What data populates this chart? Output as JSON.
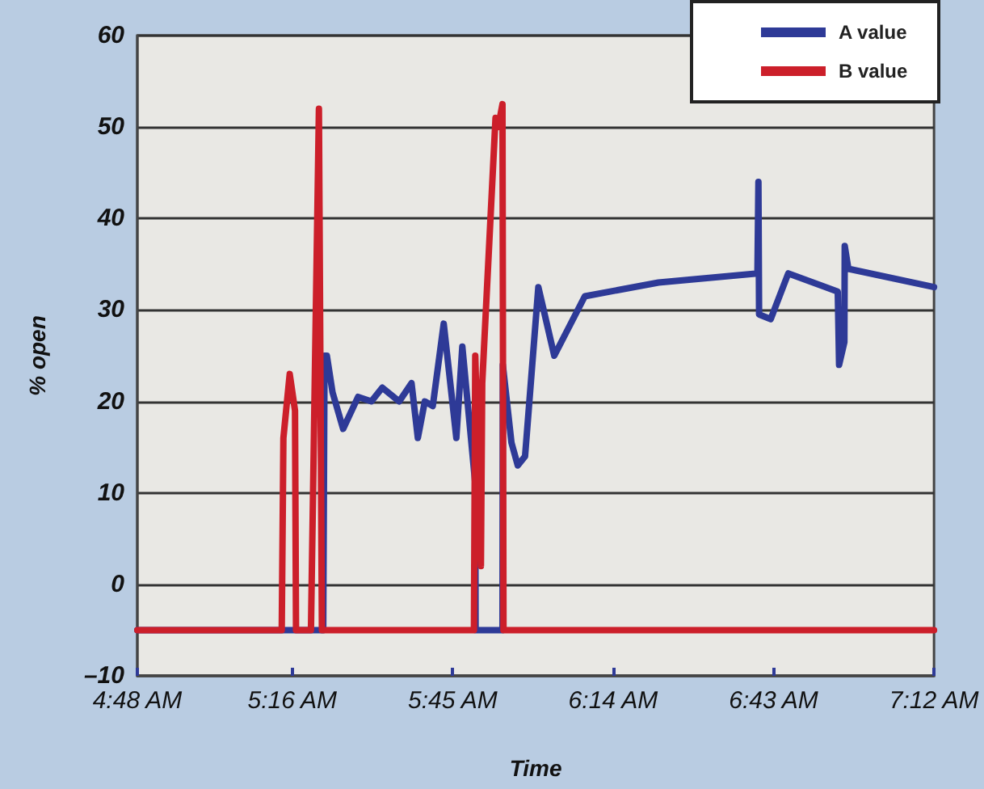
{
  "chart_data": {
    "type": "line",
    "xlabel": "Time",
    "ylabel": "% open",
    "xlim": [
      4.8,
      7.2
    ],
    "xticks": [
      {
        "value": 4.8,
        "label": "4:48 AM"
      },
      {
        "value": 5.2667,
        "label": "5:16 AM"
      },
      {
        "value": 5.75,
        "label": "5:45 AM"
      },
      {
        "value": 6.2333,
        "label": "6:14 AM"
      },
      {
        "value": 6.7167,
        "label": "6:43 AM"
      },
      {
        "value": 7.2,
        "label": "7:12 AM"
      }
    ],
    "ylim": [
      -10,
      60
    ],
    "yticks": [
      {
        "value": -10,
        "label": "–10"
      },
      0,
      10,
      20,
      30,
      40,
      50,
      60
    ],
    "grid": "y",
    "legend": "top right",
    "marker": "none",
    "line_style": "solid",
    "series": [
      {
        "name": "A value",
        "color": "#2e3a97",
        "x": [
          4.8,
          5.36,
          5.364,
          5.371,
          5.388,
          5.42,
          5.465,
          5.505,
          5.538,
          5.589,
          5.626,
          5.645,
          5.666,
          5.69,
          5.723,
          5.761,
          5.779,
          5.818,
          5.819,
          5.9,
          5.901,
          5.927,
          5.946,
          5.968,
          6.008,
          6.056,
          6.148,
          6.37,
          6.668,
          6.671,
          6.673,
          6.708,
          6.761,
          6.91,
          6.914,
          6.93,
          6.931,
          6.942,
          7.2
        ],
        "values": [
          -5,
          -5,
          25,
          25,
          21,
          17,
          20.5,
          20,
          21.5,
          20,
          22,
          16,
          20,
          19.5,
          28.5,
          16,
          26,
          11,
          -5,
          -5,
          24,
          15.5,
          13,
          14,
          32.5,
          25,
          31.5,
          33,
          34,
          44,
          29.5,
          29,
          34,
          32,
          24,
          26.5,
          37,
          34.5,
          32.5
        ]
      },
      {
        "name": "B value",
        "color": "#cc1f2a",
        "x": [
          4.8,
          5.235,
          5.24,
          5.259,
          5.275,
          5.278,
          5.323,
          5.347,
          5.356,
          5.814,
          5.818,
          5.835,
          5.839,
          5.879,
          5.887,
          5.9,
          5.903,
          7.2
        ],
        "values": [
          -5,
          -5,
          16,
          23,
          19,
          -5,
          -5,
          52,
          -5,
          -5,
          25,
          2,
          22,
          51,
          50,
          52.5,
          -5,
          -5
        ]
      }
    ]
  }
}
